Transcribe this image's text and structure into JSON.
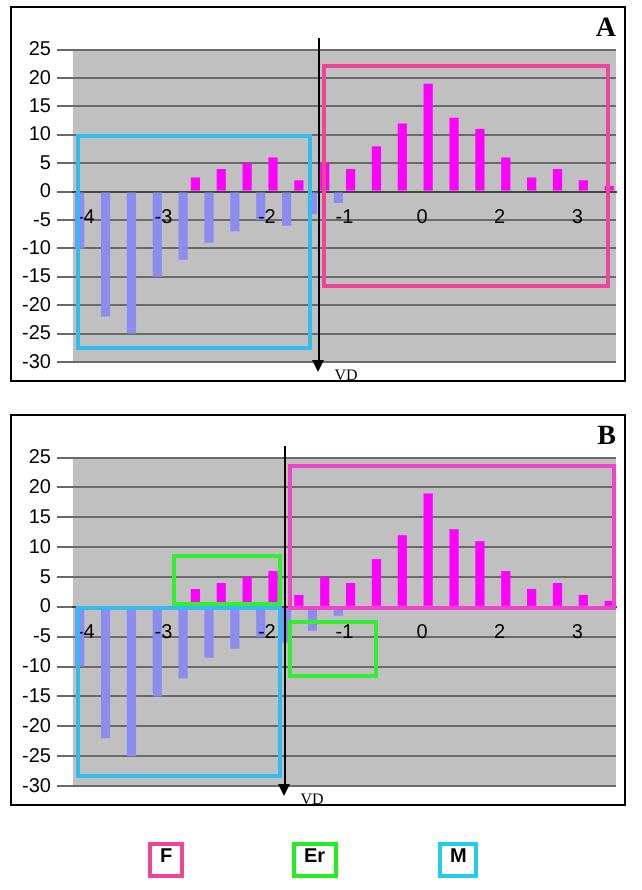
{
  "chart_data": [
    {
      "type": "bar",
      "title": "A",
      "annotations": [
        "VD"
      ],
      "categories": [
        "-4",
        null,
        null,
        "-3",
        null,
        null,
        null,
        "-2",
        null,
        null,
        "-1",
        null,
        null,
        "0",
        null,
        null,
        "2",
        null,
        null,
        "3",
        null
      ],
      "series": [
        {
          "color": "#8c8cf0",
          "values": [
            -10,
            -22,
            -25,
            -15,
            -12,
            -9,
            -7,
            -5,
            -6,
            -4,
            -2,
            null,
            null,
            null,
            null,
            null,
            null,
            null,
            null,
            null,
            null
          ]
        },
        {
          "color": "#ff00ff",
          "values": [
            null,
            null,
            null,
            null,
            2.5,
            4,
            5,
            6,
            2,
            5,
            4,
            8,
            12,
            19,
            13,
            11,
            6,
            2.5,
            4,
            2,
            1
          ]
        }
      ],
      "ylim": [
        -30,
        25
      ],
      "yticks": [
        -30,
        -25,
        -20,
        -15,
        -10,
        -5,
        0,
        5,
        10,
        15,
        20,
        25
      ],
      "grid": "y",
      "legend": false
    },
    {
      "type": "bar",
      "title": "B",
      "annotations": [
        "VD",
        "F",
        "Er",
        "M"
      ],
      "categories": [
        "-4",
        null,
        null,
        "-3",
        null,
        null,
        null,
        "-2",
        null,
        null,
        "-1",
        null,
        null,
        "0",
        null,
        null,
        "2",
        null,
        null,
        "3",
        null
      ],
      "series": [
        {
          "color": "#8c8cf0",
          "values": [
            -10,
            -22,
            -25,
            -15,
            -12,
            -8.5,
            -7,
            -5,
            -6,
            -4,
            -1.5,
            null,
            null,
            null,
            null,
            null,
            null,
            null,
            null,
            null,
            null
          ]
        },
        {
          "color": "#ff00ff",
          "values": [
            null,
            null,
            null,
            null,
            3,
            4,
            5,
            6,
            2,
            5,
            4,
            8,
            12,
            19,
            13,
            11,
            6,
            3,
            4,
            2,
            1
          ]
        }
      ],
      "ylim": [
        -30,
        25
      ],
      "yticks": [
        -30,
        -25,
        -20,
        -15,
        -10,
        -5,
        0,
        5,
        10,
        15,
        20,
        25
      ],
      "grid": "y",
      "legend": false
    }
  ]
}
